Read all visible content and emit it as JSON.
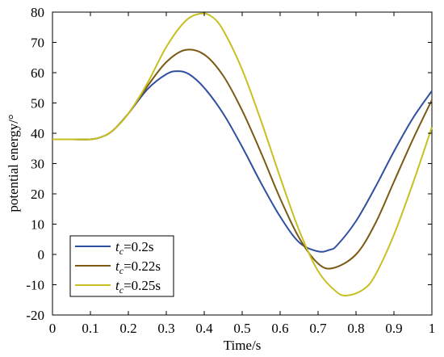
{
  "chart_data": {
    "type": "line",
    "xlabel": "Time/s",
    "ylabel": "potential energy/°",
    "xlim": [
      0,
      1
    ],
    "ylim": [
      -20,
      80
    ],
    "xticks": [
      "0",
      "0.1",
      "0.2",
      "0.3",
      "0.4",
      "0.5",
      "0.6",
      "0.7",
      "0.8",
      "0.9",
      "1"
    ],
    "yticks": [
      "-20",
      "-10",
      "0",
      "10",
      "20",
      "30",
      "40",
      "50",
      "60",
      "70",
      "80"
    ],
    "grid": false,
    "legend_position": "bottom-left",
    "legend_italic_prefix": "t",
    "legend_subscript": "c",
    "series": [
      {
        "name": "=0.2s",
        "color": "#2f4fa0",
        "x": [
          0,
          0.05,
          0.1,
          0.13,
          0.16,
          0.2,
          0.25,
          0.3,
          0.33,
          0.36,
          0.4,
          0.45,
          0.5,
          0.55,
          0.6,
          0.65,
          0.7,
          0.73,
          0.75,
          0.8,
          0.85,
          0.9,
          0.95,
          1.0
        ],
        "y": [
          38,
          38,
          38,
          38.8,
          41,
          46.5,
          54.5,
          59.5,
          60.5,
          59.5,
          55,
          46.5,
          35.5,
          23.5,
          12.5,
          4,
          1,
          1.5,
          3,
          11,
          22,
          34,
          45,
          54
        ]
      },
      {
        "name": "=0.22s",
        "color": "#7a5a14",
        "x": [
          0,
          0.05,
          0.1,
          0.13,
          0.16,
          0.2,
          0.25,
          0.3,
          0.35,
          0.4,
          0.45,
          0.5,
          0.55,
          0.6,
          0.65,
          0.7,
          0.74,
          0.8,
          0.85,
          0.9,
          0.95,
          1.0
        ],
        "y": [
          38,
          38,
          38,
          38.8,
          41,
          46.5,
          55.5,
          63.5,
          67.5,
          66,
          59,
          47.5,
          33.5,
          18.5,
          5.5,
          -3,
          -4.5,
          0,
          10,
          24,
          38,
          51
        ]
      },
      {
        "name": "=0.25s",
        "color": "#c8c022",
        "x": [
          0,
          0.05,
          0.1,
          0.13,
          0.16,
          0.2,
          0.25,
          0.3,
          0.35,
          0.39,
          0.42,
          0.45,
          0.5,
          0.55,
          0.6,
          0.65,
          0.7,
          0.75,
          0.78,
          0.82,
          0.85,
          0.9,
          0.95,
          1.0
        ],
        "y": [
          38,
          38,
          38,
          38.8,
          41,
          46.5,
          56.5,
          68.5,
          77,
          79.5,
          78.5,
          74,
          61,
          44,
          25.5,
          8,
          -5.5,
          -12.5,
          -13.5,
          -11.5,
          -7,
          6.5,
          23.5,
          42
        ]
      }
    ]
  }
}
